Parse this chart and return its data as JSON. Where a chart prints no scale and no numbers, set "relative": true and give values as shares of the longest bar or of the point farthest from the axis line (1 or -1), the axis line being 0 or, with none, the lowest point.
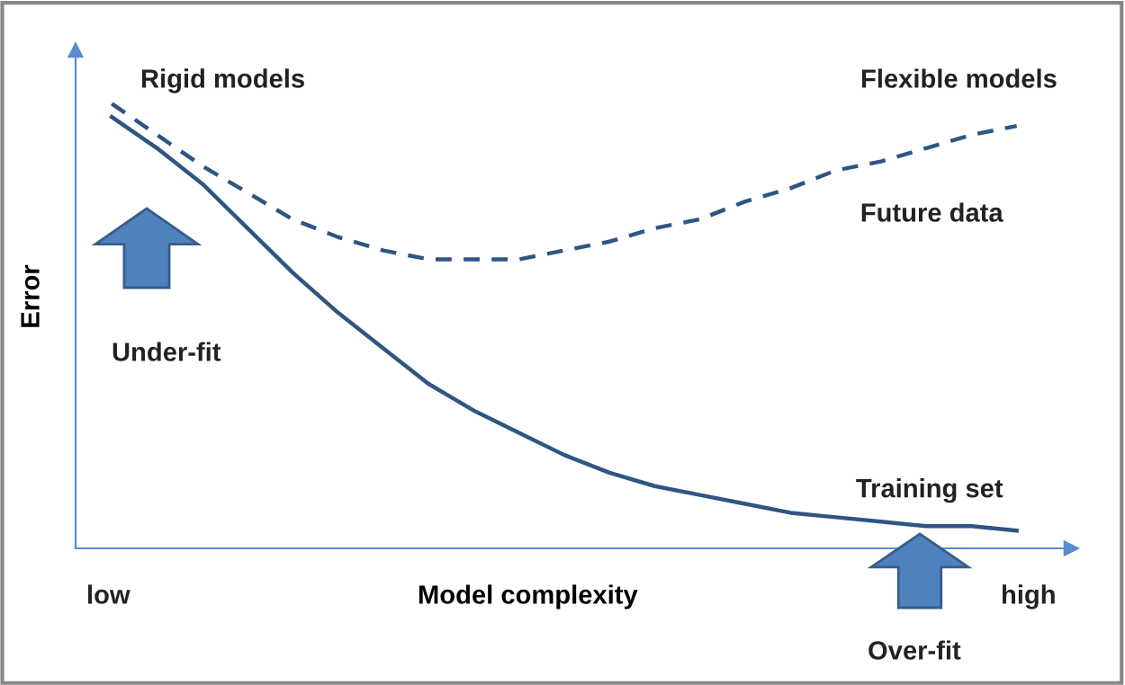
{
  "chart_data": {
    "type": "line",
    "relative": true,
    "xlabel": "Model complexity",
    "ylabel": "Error",
    "categories": [
      null,
      null,
      null,
      null,
      null,
      null,
      null,
      null,
      null,
      null,
      null,
      null,
      null,
      null,
      null,
      null,
      null,
      null,
      null,
      null,
      null
    ],
    "series": [
      {
        "name": "Future data",
        "color": "#2f5582",
        "line_style": "dashed",
        "values": [
          1,
          0.93,
          0.86,
          0.8,
          0.74,
          0.7,
          0.67,
          0.65,
          0.65,
          0.65,
          0.67,
          0.69,
          0.72,
          0.74,
          0.78,
          0.81,
          0.85,
          0.87,
          0.9,
          0.93,
          0.95
        ]
      },
      {
        "name": "Training set",
        "color": "#2f5582",
        "line_style": "solid",
        "values": [
          0.97,
          0.9,
          0.82,
          0.72,
          0.62,
          0.53,
          0.45,
          0.37,
          0.31,
          0.26,
          0.21,
          0.17,
          0.14,
          0.12,
          0.1,
          0.08,
          0.07,
          0.06,
          0.05,
          0.05,
          0.04
        ]
      }
    ],
    "annotations": [
      "Rigid models",
      "Flexible models",
      "Under-fit",
      "Over-fit",
      "low",
      "high"
    ],
    "legend": false,
    "marker": "none"
  }
}
